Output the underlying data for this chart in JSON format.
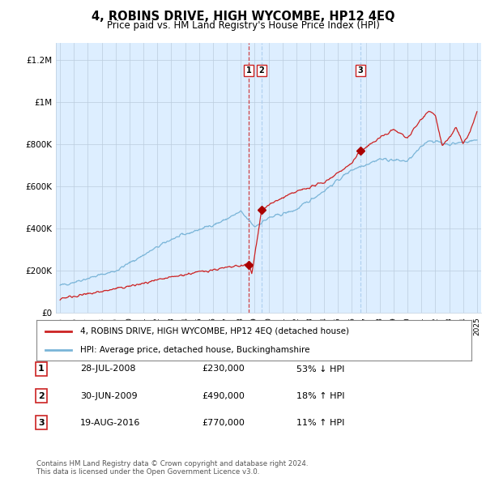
{
  "title": "4, ROBINS DRIVE, HIGH WYCOMBE, HP12 4EQ",
  "subtitle": "Price paid vs. HM Land Registry's House Price Index (HPI)",
  "ylabel_ticks": [
    "£0",
    "£200K",
    "£400K",
    "£600K",
    "£800K",
    "£1M",
    "£1.2M"
  ],
  "ytick_values": [
    0,
    200000,
    400000,
    600000,
    800000,
    1000000,
    1200000
  ],
  "ylim": [
    0,
    1280000
  ],
  "hpi_color": "#7ab5d8",
  "price_color": "#cc2222",
  "marker_color": "#aa0000",
  "vline1_color": "#cc2222",
  "vline1_style": "--",
  "vline23_color": "#aaccee",
  "vline23_style": "--",
  "plot_bg_color": "#ddeeff",
  "legend_box_label1": "4, ROBINS DRIVE, HIGH WYCOMBE, HP12 4EQ (detached house)",
  "legend_box_label2": "HPI: Average price, detached house, Buckinghamshire",
  "transactions": [
    {
      "label": "1",
      "date_num": 2008.57,
      "price": 230000,
      "vline_color": "#cc2222",
      "vline_style": "--"
    },
    {
      "label": "2",
      "date_num": 2009.5,
      "price": 490000,
      "vline_color": "#aaccee",
      "vline_style": "--"
    },
    {
      "label": "3",
      "date_num": 2016.63,
      "price": 770000,
      "vline_color": "#aaccee",
      "vline_style": "--"
    }
  ],
  "table_rows": [
    [
      "1",
      "28-JUL-2008",
      "£230,000",
      "53% ↓ HPI"
    ],
    [
      "2",
      "30-JUN-2009",
      "£490,000",
      "18% ↑ HPI"
    ],
    [
      "3",
      "19-AUG-2016",
      "£770,000",
      "11% ↑ HPI"
    ]
  ],
  "footer": "Contains HM Land Registry data © Crown copyright and database right 2024.\nThis data is licensed under the Open Government Licence v3.0.",
  "background_color": "#ffffff",
  "grid_color": "#bbccdd"
}
